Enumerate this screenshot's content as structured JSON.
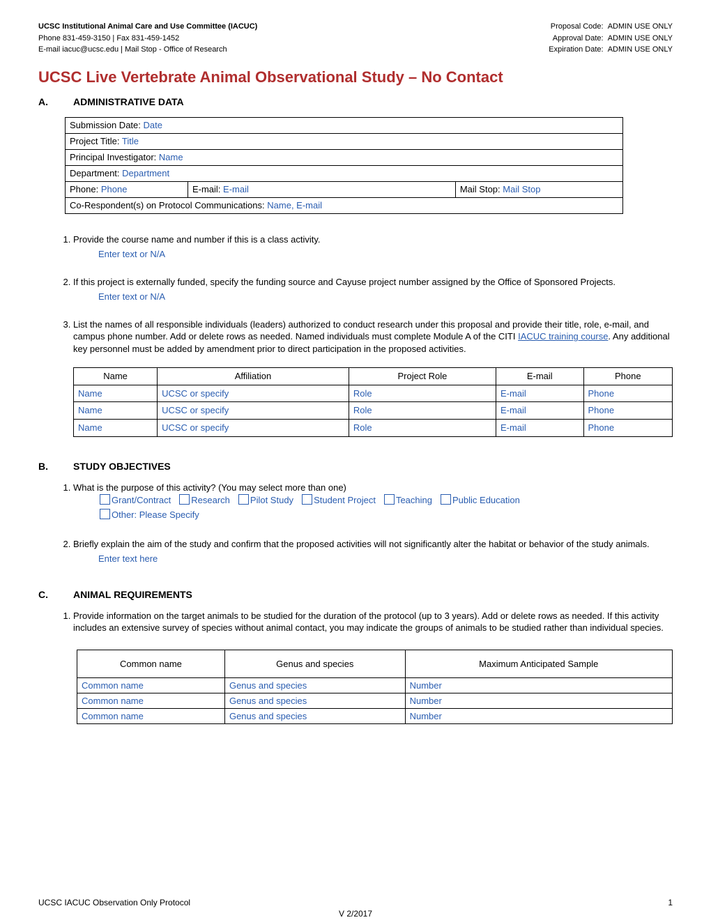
{
  "header": {
    "left": {
      "line1": "UCSC Institutional Animal Care and Use Committee (IACUC)",
      "line2": "Phone 831-459-3150 | Fax 831-459-1452",
      "line3": "E-mail iacuc@ucsc.edu | Mail Stop - Office of Research"
    },
    "right": {
      "line1_label": "Proposal Code:",
      "line1_value": "ADMIN USE ONLY",
      "line2_label": "Approval Date:",
      "line2_value": "ADMIN USE ONLY",
      "line3_label": "Expiration Date:",
      "line3_value": "ADMIN USE ONLY"
    }
  },
  "title": "UCSC Live Vertebrate Animal Observational Study – No Contact",
  "sectionA": {
    "letter": "A.",
    "heading": "ADMINISTRATIVE DATA",
    "admin_rows": {
      "r1_label": "Submission Date:",
      "r1_value": "Date",
      "r2_label": "Project Title:",
      "r2_value": "Title",
      "r3_label": "Principal Investigator:",
      "r3_value": "Name",
      "r4_label": "Department:",
      "r4_value": "Department",
      "r5a_label": "Phone:",
      "r5a_value": "Phone",
      "r5b_label": "E-mail:",
      "r5b_value": "E-mail",
      "r5c_label": "Mail Stop:",
      "r5c_value": "Mail Stop",
      "r6_label": "Co-Respondent(s) on Protocol Communications:",
      "r6_value": "Name, E-mail"
    },
    "q1": "Provide the course name and number if this is a class activity.",
    "q1_entry": "Enter text or N/A",
    "q2": "If this project is externally funded, specify the funding source and Cayuse project number assigned by the Office of Sponsored Projects.",
    "q2_entry": "Enter text or N/A",
    "q3_pre": "List the names of all responsible individuals (leaders) authorized to conduct research under this proposal and provide their title, role, e-mail, and campus phone number. Add or delete rows as needed.  Named individuals must complete Module A of the CITI ",
    "q3_link": "IACUC training course",
    "q3_post": ". Any additional key personnel must be added by amendment prior to direct participation in the proposed activities.",
    "personnel_headers": [
      "Name",
      "Affiliation",
      "Project Role",
      "E-mail",
      "Phone"
    ],
    "personnel_rows": [
      {
        "name": "Name",
        "aff": "UCSC or specify",
        "role": "Role",
        "email": "E-mail",
        "phone": "Phone"
      },
      {
        "name": "Name",
        "aff": "UCSC or specify",
        "role": "Role",
        "email": "E-mail",
        "phone": "Phone"
      },
      {
        "name": "Name",
        "aff": "UCSC or specify",
        "role": "Role",
        "email": "E-mail",
        "phone": "Phone"
      }
    ]
  },
  "sectionB": {
    "letter": "B.",
    "heading": "STUDY OBJECTIVES",
    "q1": "What is the purpose of this activity? (You may select more than one)",
    "q1_options": [
      "Grant/Contract",
      "Research",
      "Pilot Study",
      "Student Project",
      "Teaching",
      "Public Education",
      "Other: Please Specify"
    ],
    "q2": "Briefly explain the aim of the study and confirm that the proposed activities will not significantly alter the habitat or behavior of the study animals.",
    "q2_entry": "Enter text here"
  },
  "sectionC": {
    "letter": "C.",
    "heading": "ANIMAL REQUIREMENTS",
    "q1": "Provide information on the target animals to be studied for the duration of the protocol (up to 3 years).  Add or delete rows as needed. If this activity includes an extensive survey of species without animal contact, you may indicate the groups of animals to be studied rather than individual species.",
    "animal_headers": [
      "Common name",
      "Genus and species",
      "Maximum Anticipated Sample"
    ],
    "animal_rows": [
      {
        "common": "Common name",
        "genus": "Genus and species",
        "max": "Number"
      },
      {
        "common": "Common name",
        "genus": "Genus and species",
        "max": "Number"
      },
      {
        "common": "Common name",
        "genus": "Genus and species",
        "max": "Number"
      }
    ]
  },
  "footer": {
    "left": "UCSC IACUC Observation Only Protocol",
    "page": "1",
    "version": "V 2/2017"
  }
}
